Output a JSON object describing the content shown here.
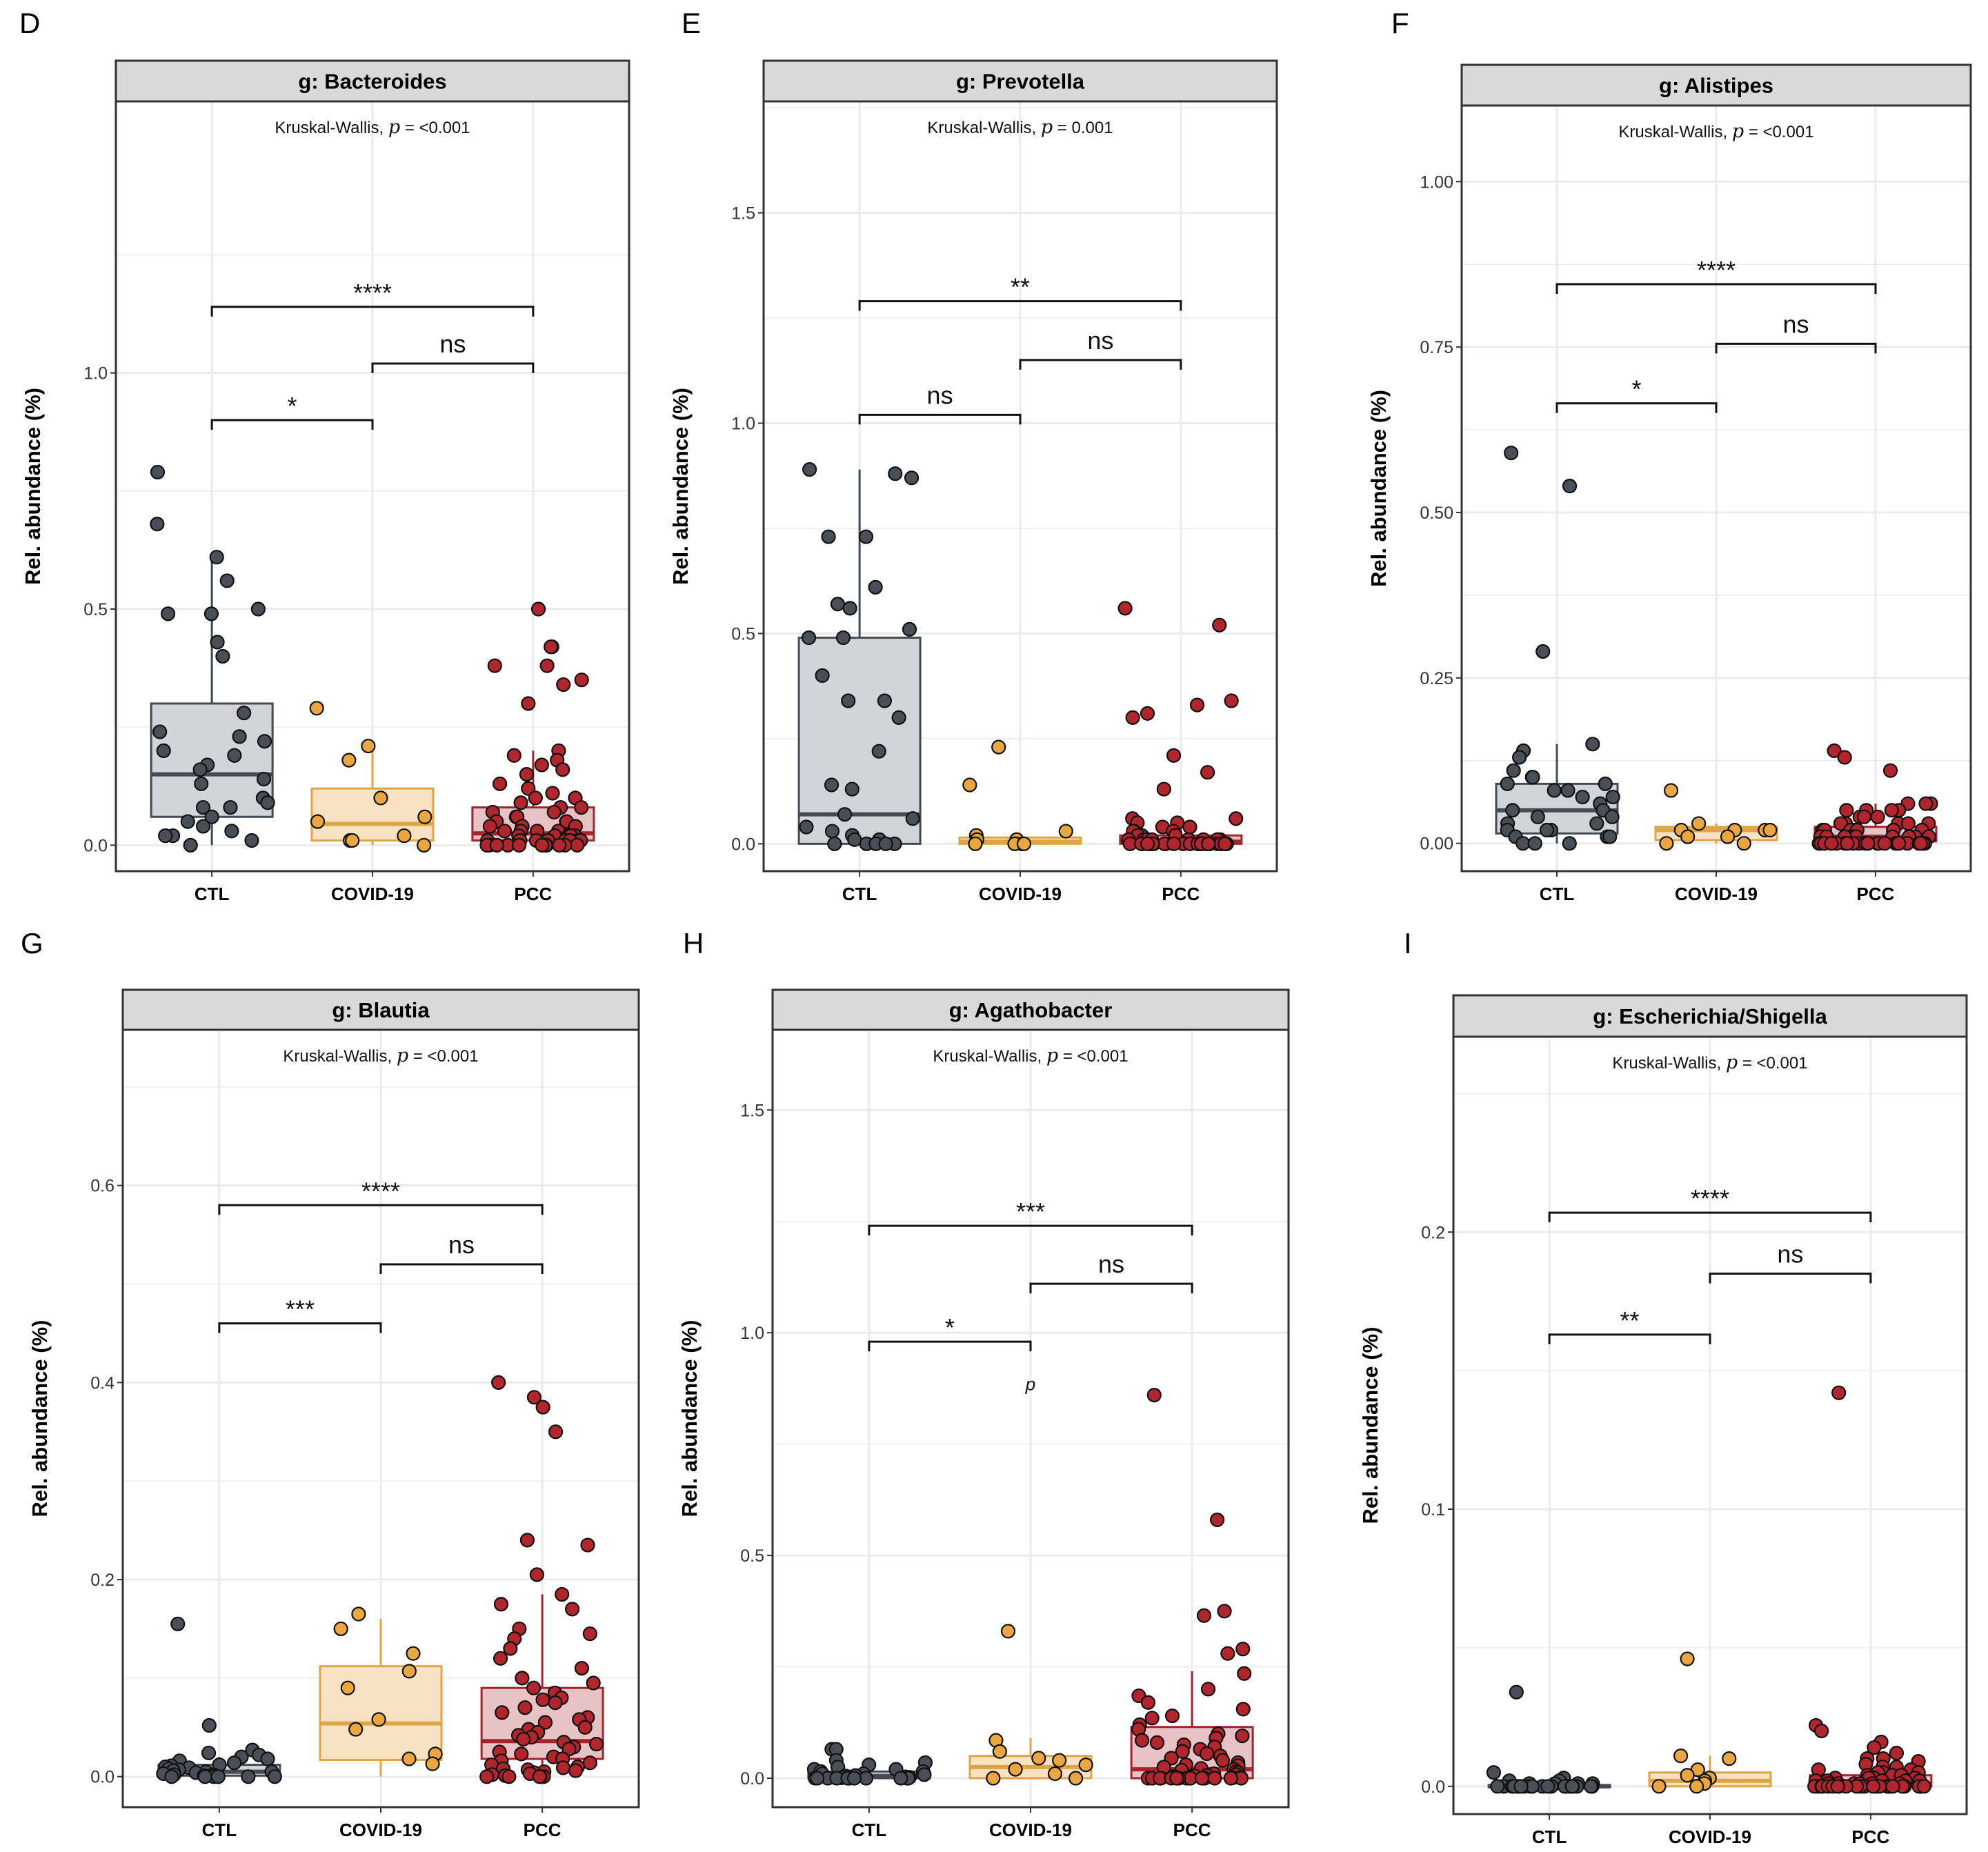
{
  "figure": {
    "groups": [
      "CTL",
      "COVID-19",
      "PCC"
    ],
    "y_axis_label": "Rel. abundance (%)",
    "colors": {
      "CTL": {
        "fill": "#d2d4d8",
        "line": "#454b54",
        "point": "#4a4f57"
      },
      "COVID-19": {
        "fill": "#f7e3c4",
        "line": "#e0a445",
        "point": "#eaa640"
      },
      "PCC": {
        "fill": "#e8c3c5",
        "line": "#a3252b",
        "point": "#b0262c"
      },
      "panel_strip": "#d9d9d9",
      "gridline": "#ebebeb"
    }
  },
  "chart_data": [
    {
      "panel": "D",
      "type": "box",
      "title": "g: Bacteroides",
      "test_label": "Kruskal-Wallis,",
      "p_symbol": "p",
      "p_text": "= <0.001",
      "ylabel": "Rel. abundance (%)",
      "ylim": [
        -0.055,
        1.575
      ],
      "yticks": [
        0.0,
        0.5,
        1.0
      ],
      "ytick_labels": [
        "0.0",
        "0.5",
        "1.0"
      ],
      "categories": [
        "CTL",
        "COVID-19",
        "PCC"
      ],
      "boxes": [
        {
          "group": "CTL",
          "q1": 0.06,
          "median": 0.15,
          "q3": 0.3,
          "lower": 0.0,
          "upper": 0.61
        },
        {
          "group": "COVID-19",
          "q1": 0.01,
          "median": 0.045,
          "q3": 0.12,
          "lower": 0.0,
          "upper": 0.21
        },
        {
          "group": "PCC",
          "q1": 0.01,
          "median": 0.025,
          "q3": 0.08,
          "lower": 0.0,
          "upper": 0.2
        }
      ],
      "points": {
        "CTL": [
          0.79,
          0.68,
          0.61,
          0.56,
          0.5,
          0.49,
          0.49,
          0.43,
          0.4,
          0.28,
          0.24,
          0.23,
          0.22,
          0.2,
          0.19,
          0.17,
          0.16,
          0.14,
          0.13,
          0.1,
          0.09,
          0.08,
          0.08,
          0.06,
          0.05,
          0.04,
          0.03,
          0.02,
          0.02,
          0.01,
          0.0
        ],
        "COVID-19": [
          0.29,
          0.21,
          0.18,
          0.1,
          0.06,
          0.05,
          0.02,
          0.01,
          0.01,
          0.0
        ],
        "PCC": [
          0.5,
          0.42,
          0.42,
          0.38,
          0.38,
          0.35,
          0.34,
          0.3,
          0.2,
          0.19,
          0.18,
          0.17,
          0.16,
          0.15,
          0.13,
          0.12,
          0.11,
          0.1,
          0.1,
          0.09,
          0.08,
          0.08,
          0.07,
          0.07,
          0.06,
          0.06,
          0.05,
          0.05,
          0.05,
          0.04,
          0.04,
          0.04,
          0.03,
          0.03,
          0.03,
          0.03,
          0.02,
          0.02,
          0.02,
          0.02,
          0.02,
          0.01,
          0.01,
          0.01,
          0.01,
          0.01,
          0.01,
          0.01,
          0.01,
          0.0,
          0.0,
          0.0,
          0.0,
          0.0,
          0.0,
          0.0,
          0.0,
          0.0,
          0.0,
          0.0
        ]
      },
      "comparisons": [
        {
          "from": "CTL",
          "to": "PCC",
          "y": 1.14,
          "label": "****"
        },
        {
          "from": "COVID-19",
          "to": "PCC",
          "y": 1.02,
          "label": "ns"
        },
        {
          "from": "CTL",
          "to": "COVID-19",
          "y": 0.9,
          "label": "*"
        }
      ],
      "annotations": []
    },
    {
      "panel": "E",
      "type": "box",
      "title": "g: Prevotella",
      "test_label": "Kruskal-Wallis,",
      "p_symbol": "p",
      "p_text": "= 0.001",
      "ylabel": "Rel. abundance (%)",
      "ylim": [
        -0.065,
        1.765
      ],
      "yticks": [
        0.0,
        0.5,
        1.0,
        1.5
      ],
      "ytick_labels": [
        "0.0",
        "0.5",
        "1.0",
        "1.5"
      ],
      "categories": [
        "CTL",
        "COVID-19",
        "PCC"
      ],
      "boxes": [
        {
          "group": "CTL",
          "q1": 0.0,
          "median": 0.07,
          "q3": 0.49,
          "lower": 0.0,
          "upper": 0.89
        },
        {
          "group": "COVID-19",
          "q1": 0.0,
          "median": 0.005,
          "q3": 0.015,
          "lower": 0.0,
          "upper": 0.02
        },
        {
          "group": "PCC",
          "q1": 0.0,
          "median": 0.005,
          "q3": 0.02,
          "lower": 0.0,
          "upper": 0.05
        }
      ],
      "points": {
        "CTL": [
          0.89,
          0.88,
          0.87,
          0.73,
          0.73,
          0.61,
          0.57,
          0.56,
          0.51,
          0.49,
          0.49,
          0.4,
          0.34,
          0.34,
          0.3,
          0.22,
          0.14,
          0.13,
          0.07,
          0.06,
          0.04,
          0.03,
          0.02,
          0.01,
          0.01,
          0.0,
          0.0,
          0.0,
          0.0,
          0.0
        ],
        "COVID-19": [
          0.23,
          0.14,
          0.03,
          0.02,
          0.01,
          0.01,
          0.0,
          0.0,
          0.0,
          0.0
        ],
        "PCC": [
          0.56,
          0.52,
          0.34,
          0.33,
          0.31,
          0.3,
          0.21,
          0.17,
          0.13,
          0.06,
          0.06,
          0.05,
          0.05,
          0.04,
          0.04,
          0.03,
          0.03,
          0.03,
          0.02,
          0.02,
          0.02,
          0.02,
          0.01,
          0.01,
          0.01,
          0.01,
          0.01,
          0.01,
          0.01,
          0.01,
          0.01,
          0.0,
          0.0,
          0.0,
          0.0,
          0.0,
          0.0,
          0.0,
          0.0,
          0.0,
          0.0,
          0.0,
          0.0,
          0.0,
          0.0,
          0.0,
          0.0,
          0.0,
          0.0,
          0.0,
          0.0,
          0.0,
          0.0,
          0.0,
          0.0,
          0.0,
          0.0,
          0.0,
          0.0,
          0.0
        ]
      },
      "comparisons": [
        {
          "from": "CTL",
          "to": "PCC",
          "y": 1.29,
          "label": "**"
        },
        {
          "from": "COVID-19",
          "to": "PCC",
          "y": 1.15,
          "label": "ns"
        },
        {
          "from": "CTL",
          "to": "COVID-19",
          "y": 1.02,
          "label": "ns"
        }
      ],
      "annotations": []
    },
    {
      "panel": "F",
      "type": "box",
      "title": "g: Alistipes",
      "test_label": "Kruskal-Wallis,",
      "p_symbol": "p",
      "p_text": "= <0.001",
      "ylabel": "Rel. abundance (%)",
      "ylim": [
        -0.042,
        1.115
      ],
      "yticks": [
        0.0,
        0.25,
        0.5,
        0.75,
        1.0
      ],
      "ytick_labels": [
        "0.00",
        "0.25",
        "0.50",
        "0.75",
        "1.00"
      ],
      "categories": [
        "CTL",
        "COVID-19",
        "PCC"
      ],
      "boxes": [
        {
          "group": "CTL",
          "q1": 0.015,
          "median": 0.05,
          "q3": 0.09,
          "lower": 0.0,
          "upper": 0.15
        },
        {
          "group": "COVID-19",
          "q1": 0.005,
          "median": 0.02,
          "q3": 0.025,
          "lower": 0.0,
          "upper": 0.03
        },
        {
          "group": "PCC",
          "q1": 0.003,
          "median": 0.01,
          "q3": 0.025,
          "lower": 0.0,
          "upper": 0.06
        }
      ],
      "points": {
        "CTL": [
          0.59,
          0.54,
          0.29,
          0.15,
          0.14,
          0.13,
          0.11,
          0.1,
          0.1,
          0.09,
          0.09,
          0.08,
          0.08,
          0.07,
          0.07,
          0.06,
          0.05,
          0.05,
          0.04,
          0.04,
          0.03,
          0.03,
          0.02,
          0.02,
          0.02,
          0.01,
          0.01,
          0.01,
          0.0,
          0.0,
          0.0
        ],
        "COVID-19": [
          0.08,
          0.03,
          0.02,
          0.02,
          0.02,
          0.02,
          0.01,
          0.01,
          0.0,
          0.0
        ],
        "PCC": [
          0.14,
          0.13,
          0.11,
          0.06,
          0.06,
          0.06,
          0.05,
          0.05,
          0.05,
          0.05,
          0.04,
          0.04,
          0.04,
          0.03,
          0.03,
          0.03,
          0.03,
          0.03,
          0.02,
          0.02,
          0.02,
          0.02,
          0.02,
          0.02,
          0.02,
          0.02,
          0.01,
          0.01,
          0.01,
          0.01,
          0.01,
          0.01,
          0.01,
          0.01,
          0.01,
          0.01,
          0.0,
          0.0,
          0.0,
          0.0,
          0.0,
          0.0,
          0.0,
          0.0,
          0.0,
          0.0,
          0.0,
          0.0,
          0.0,
          0.0,
          0.0,
          0.0,
          0.0,
          0.0,
          0.0,
          0.0,
          0.0,
          0.0,
          0.0,
          0.0
        ]
      },
      "comparisons": [
        {
          "from": "CTL",
          "to": "PCC",
          "y": 0.845,
          "label": "****"
        },
        {
          "from": "COVID-19",
          "to": "PCC",
          "y": 0.755,
          "label": "ns"
        },
        {
          "from": "CTL",
          "to": "COVID-19",
          "y": 0.665,
          "label": "*"
        }
      ],
      "annotations": []
    },
    {
      "panel": "G",
      "type": "box",
      "title": "g: Blautia",
      "test_label": "Kruskal-Wallis,",
      "p_symbol": "p",
      "p_text": "= <0.001",
      "ylabel": "Rel. abundance (%)",
      "ylim": [
        -0.031,
        0.758
      ],
      "yticks": [
        0.0,
        0.2,
        0.4,
        0.6
      ],
      "ytick_labels": [
        "0.0",
        "0.2",
        "0.4",
        "0.6"
      ],
      "categories": [
        "CTL",
        "COVID-19",
        "PCC"
      ],
      "boxes": [
        {
          "group": "CTL",
          "q1": 0.001,
          "median": 0.005,
          "q3": 0.012,
          "lower": 0.0,
          "upper": 0.02
        },
        {
          "group": "COVID-19",
          "q1": 0.017,
          "median": 0.054,
          "q3": 0.112,
          "lower": 0.0,
          "upper": 0.16
        },
        {
          "group": "PCC",
          "q1": 0.018,
          "median": 0.036,
          "q3": 0.09,
          "lower": 0.0,
          "upper": 0.185
        }
      ],
      "points": {
        "CTL": [
          0.155,
          0.052,
          0.027,
          0.024,
          0.022,
          0.02,
          0.018,
          0.016,
          0.014,
          0.012,
          0.011,
          0.01,
          0.009,
          0.008,
          0.007,
          0.006,
          0.005,
          0.005,
          0.004,
          0.003,
          0.002,
          0.002,
          0.001,
          0.001,
          0.0,
          0.0,
          0.0,
          0.0,
          0.0,
          0.0
        ],
        "COVID-19": [
          0.165,
          0.15,
          0.125,
          0.107,
          0.09,
          0.058,
          0.048,
          0.023,
          0.018,
          0.013
        ],
        "PCC": [
          0.4,
          0.385,
          0.375,
          0.35,
          0.24,
          0.235,
          0.205,
          0.185,
          0.175,
          0.17,
          0.15,
          0.145,
          0.14,
          0.13,
          0.12,
          0.11,
          0.1,
          0.095,
          0.09,
          0.085,
          0.08,
          0.078,
          0.075,
          0.07,
          0.065,
          0.06,
          0.058,
          0.055,
          0.05,
          0.048,
          0.045,
          0.042,
          0.04,
          0.038,
          0.035,
          0.033,
          0.03,
          0.028,
          0.025,
          0.023,
          0.02,
          0.018,
          0.016,
          0.014,
          0.012,
          0.01,
          0.009,
          0.008,
          0.007,
          0.006,
          0.005,
          0.004,
          0.003,
          0.002,
          0.001,
          0.0,
          0.0,
          0.0,
          0.0,
          0.0
        ]
      },
      "comparisons": [
        {
          "from": "CTL",
          "to": "PCC",
          "y": 0.58,
          "label": "****"
        },
        {
          "from": "COVID-19",
          "to": "PCC",
          "y": 0.52,
          "label": "ns"
        },
        {
          "from": "CTL",
          "to": "COVID-19",
          "y": 0.46,
          "label": "***"
        }
      ],
      "annotations": []
    },
    {
      "panel": "H",
      "type": "box",
      "title": "g: Agathobacter",
      "test_label": "Kruskal-Wallis,",
      "p_symbol": "p",
      "p_text": "= <0.001",
      "ylabel": "Rel. abundance (%)",
      "ylim": [
        -0.065,
        1.68
      ],
      "yticks": [
        0.0,
        0.5,
        1.0,
        1.5
      ],
      "ytick_labels": [
        "0.0",
        "0.5",
        "1.0",
        "1.5"
      ],
      "categories": [
        "CTL",
        "COVID-19",
        "PCC"
      ],
      "boxes": [
        {
          "group": "CTL",
          "q1": 0.0,
          "median": 0.005,
          "q3": 0.015,
          "lower": 0.0,
          "upper": 0.03
        },
        {
          "group": "COVID-19",
          "q1": 0.0,
          "median": 0.025,
          "q3": 0.05,
          "lower": 0.0,
          "upper": 0.09
        },
        {
          "group": "PCC",
          "q1": 0.0,
          "median": 0.02,
          "q3": 0.115,
          "lower": 0.0,
          "upper": 0.24
        }
      ],
      "points": {
        "CTL": [
          0.065,
          0.065,
          0.04,
          0.035,
          0.03,
          0.025,
          0.02,
          0.02,
          0.015,
          0.015,
          0.01,
          0.01,
          0.008,
          0.006,
          0.005,
          0.004,
          0.003,
          0.002,
          0.001,
          0.0,
          0.0,
          0.0,
          0.0,
          0.0,
          0.0,
          0.0,
          0.0,
          0.0,
          0.0,
          0.0
        ],
        "COVID-19": [
          0.33,
          0.085,
          0.06,
          0.045,
          0.04,
          0.03,
          0.02,
          0.01,
          0.0,
          0.0
        ],
        "PCC": [
          0.86,
          0.58,
          0.375,
          0.365,
          0.29,
          0.28,
          0.235,
          0.2,
          0.185,
          0.17,
          0.155,
          0.14,
          0.135,
          0.12,
          0.11,
          0.1,
          0.095,
          0.09,
          0.085,
          0.08,
          0.075,
          0.07,
          0.065,
          0.06,
          0.055,
          0.05,
          0.045,
          0.04,
          0.035,
          0.03,
          0.028,
          0.025,
          0.022,
          0.02,
          0.018,
          0.015,
          0.012,
          0.01,
          0.008,
          0.006,
          0.005,
          0.004,
          0.003,
          0.002,
          0.001,
          0.0,
          0.0,
          0.0,
          0.0,
          0.0,
          0.0,
          0.0,
          0.0,
          0.0,
          0.0,
          0.0,
          0.0,
          0.0,
          0.0,
          0.0
        ]
      },
      "comparisons": [
        {
          "from": "CTL",
          "to": "PCC",
          "y": 1.24,
          "label": "***"
        },
        {
          "from": "COVID-19",
          "to": "PCC",
          "y": 1.11,
          "label": "ns"
        },
        {
          "from": "CTL",
          "to": "COVID-19",
          "y": 0.98,
          "label": "*"
        }
      ],
      "annotations": [
        {
          "text": "p",
          "x_group": "COVID-19",
          "y": 0.88
        }
      ]
    },
    {
      "panel": "I",
      "type": "box",
      "title": "g: Escherichia/Shigella",
      "test_label": "Kruskal-Wallis,",
      "p_symbol": "p",
      "p_text": "= <0.001",
      "ylabel": "Rel. abundance (%)",
      "ylim": [
        -0.01,
        0.2705
      ],
      "yticks": [
        0.0,
        0.1,
        0.2
      ],
      "ytick_labels": [
        "0.0",
        "0.1",
        "0.2"
      ],
      "categories": [
        "CTL",
        "COVID-19",
        "PCC"
      ],
      "boxes": [
        {
          "group": "CTL",
          "q1": 0.0,
          "median": 0.0,
          "q3": 0.0005,
          "lower": 0.0,
          "upper": 0.001
        },
        {
          "group": "COVID-19",
          "q1": 0.0,
          "median": 0.002,
          "q3": 0.005,
          "lower": 0.0,
          "upper": 0.011
        },
        {
          "group": "PCC",
          "q1": 0.0,
          "median": 0.001,
          "q3": 0.004,
          "lower": 0.0,
          "upper": 0.009
        }
      ],
      "points": {
        "CTL": [
          0.034,
          0.005,
          0.003,
          0.002,
          0.002,
          0.001,
          0.001,
          0.001,
          0.001,
          0.0,
          0.0,
          0.0,
          0.0,
          0.0,
          0.0,
          0.0,
          0.0,
          0.0,
          0.0,
          0.0,
          0.0,
          0.0,
          0.0,
          0.0,
          0.0,
          0.0,
          0.0,
          0.0,
          0.0,
          0.0
        ],
        "COVID-19": [
          0.046,
          0.011,
          0.01,
          0.006,
          0.004,
          0.003,
          0.002,
          0.001,
          0.0,
          0.0
        ],
        "PCC": [
          0.142,
          0.022,
          0.02,
          0.016,
          0.014,
          0.012,
          0.01,
          0.01,
          0.009,
          0.008,
          0.007,
          0.007,
          0.006,
          0.006,
          0.005,
          0.005,
          0.005,
          0.004,
          0.004,
          0.004,
          0.003,
          0.003,
          0.003,
          0.003,
          0.002,
          0.002,
          0.002,
          0.002,
          0.002,
          0.001,
          0.001,
          0.001,
          0.001,
          0.001,
          0.001,
          0.0,
          0.0,
          0.0,
          0.0,
          0.0,
          0.0,
          0.0,
          0.0,
          0.0,
          0.0,
          0.0,
          0.0,
          0.0,
          0.0,
          0.0,
          0.0,
          0.0,
          0.0,
          0.0,
          0.0,
          0.0,
          0.0,
          0.0,
          0.0,
          0.0
        ]
      },
      "comparisons": [
        {
          "from": "CTL",
          "to": "PCC",
          "y": 0.207,
          "label": "****"
        },
        {
          "from": "COVID-19",
          "to": "PCC",
          "y": 0.185,
          "label": "ns"
        },
        {
          "from": "CTL",
          "to": "COVID-19",
          "y": 0.163,
          "label": "**"
        }
      ],
      "annotations": []
    }
  ]
}
